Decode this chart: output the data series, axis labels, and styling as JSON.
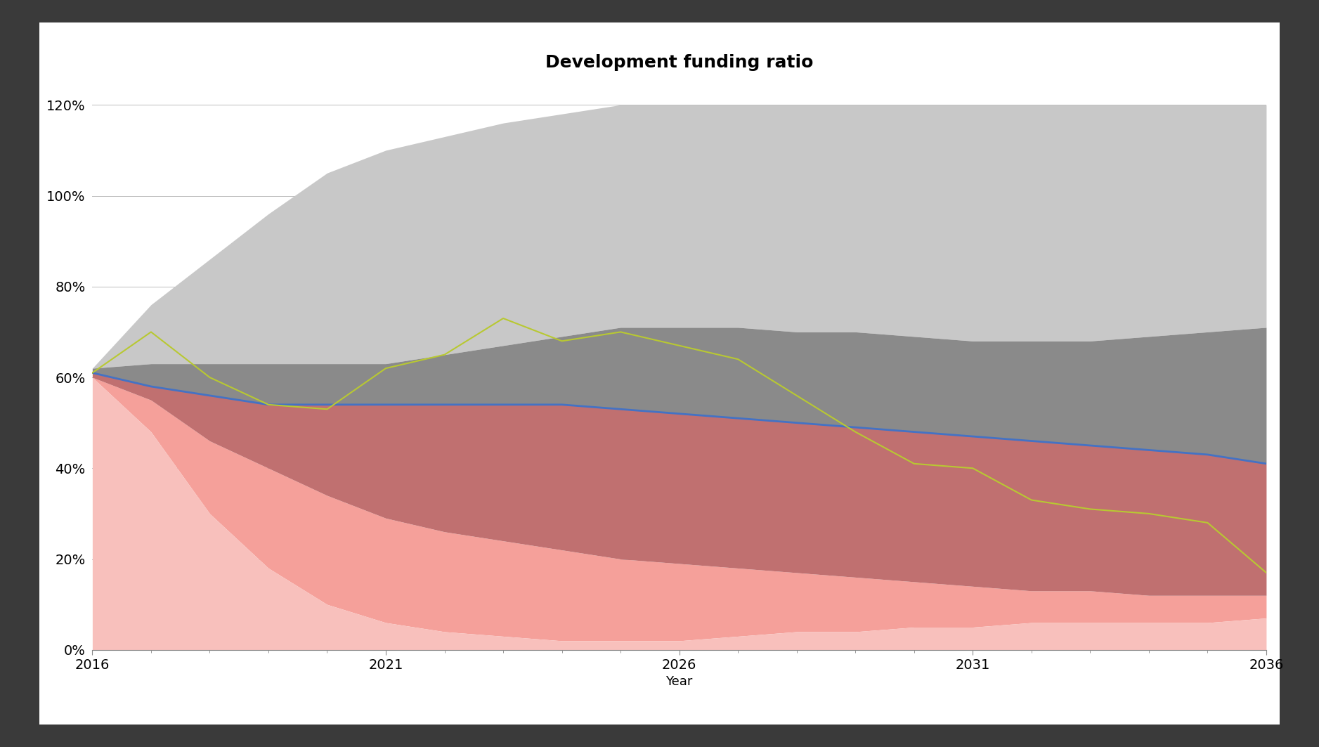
{
  "title": "Development funding ratio",
  "xlabel": "Year",
  "years": [
    2016,
    2017,
    2018,
    2019,
    2020,
    2021,
    2022,
    2023,
    2024,
    2025,
    2026,
    2027,
    2028,
    2029,
    2030,
    2031,
    2032,
    2033,
    2034,
    2035,
    2036
  ],
  "p95_upper": [
    0.62,
    0.76,
    0.86,
    0.96,
    1.05,
    1.1,
    1.13,
    1.16,
    1.18,
    1.2,
    1.2,
    1.2,
    1.2,
    1.2,
    1.2,
    1.2,
    1.2,
    1.2,
    1.2,
    1.2,
    1.2
  ],
  "p95_lower": [
    0.6,
    0.48,
    0.3,
    0.18,
    0.1,
    0.06,
    0.04,
    0.03,
    0.02,
    0.02,
    0.02,
    0.03,
    0.04,
    0.04,
    0.05,
    0.05,
    0.06,
    0.06,
    0.06,
    0.06,
    0.07
  ],
  "p50_upper": [
    0.62,
    0.63,
    0.63,
    0.63,
    0.63,
    0.63,
    0.65,
    0.67,
    0.69,
    0.71,
    0.71,
    0.71,
    0.7,
    0.7,
    0.69,
    0.68,
    0.68,
    0.68,
    0.69,
    0.7,
    0.71
  ],
  "p50_lower": [
    0.6,
    0.55,
    0.46,
    0.4,
    0.34,
    0.29,
    0.26,
    0.24,
    0.22,
    0.2,
    0.19,
    0.18,
    0.17,
    0.16,
    0.15,
    0.14,
    0.13,
    0.13,
    0.12,
    0.12,
    0.12
  ],
  "median": [
    0.61,
    0.58,
    0.56,
    0.54,
    0.54,
    0.54,
    0.54,
    0.54,
    0.54,
    0.53,
    0.52,
    0.51,
    0.5,
    0.49,
    0.48,
    0.47,
    0.46,
    0.45,
    0.44,
    0.43,
    0.41
  ],
  "random": [
    0.61,
    0.7,
    0.6,
    0.54,
    0.53,
    0.62,
    0.65,
    0.73,
    0.68,
    0.7,
    0.67,
    0.64,
    0.56,
    0.48,
    0.41,
    0.4,
    0.33,
    0.31,
    0.3,
    0.28,
    0.17
  ],
  "color_95_upper_fill": "#c8c8c8",
  "color_95_lower_fill": "#f5a09a",
  "color_50_upper_fill": "#8a8a8a",
  "color_50_lower_fill": "#c07070",
  "color_median": "#4472c4",
  "color_random": "#b8c832",
  "ylim_min": 0,
  "ylim_max": 1.25,
  "yticks": [
    0,
    0.2,
    0.4,
    0.6,
    0.8,
    1.0,
    1.2
  ],
  "ytick_labels": [
    "0%",
    "20%",
    "40%",
    "60%",
    "80%",
    "100%",
    "120%"
  ],
  "xticks": [
    2016,
    2021,
    2026,
    2031,
    2036
  ],
  "title_fontsize": 18,
  "tick_fontsize": 14,
  "xlabel_fontsize": 13,
  "legend_fontsize": 13,
  "background_color": "#ffffff",
  "outer_background": "#3a3a3a",
  "inner_frame_color": "#ffffff",
  "grid_color": "#bbbbbb"
}
